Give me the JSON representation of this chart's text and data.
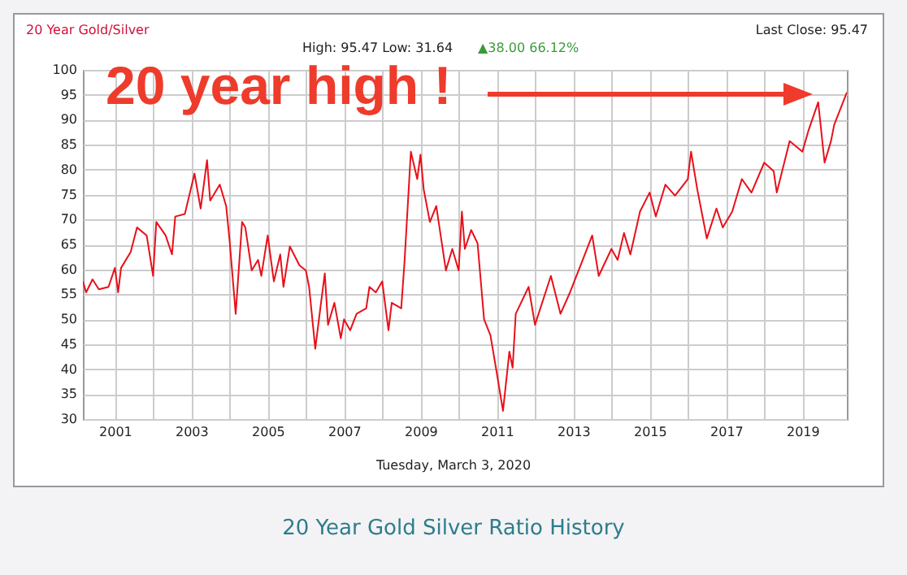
{
  "chart_data": {
    "type": "line",
    "title": "20 Year Gold/Silver",
    "subtitle": "High: 95.47 Low: 31.64",
    "xlabel": "Tuesday, March 3, 2020",
    "annotations": [
      "Last Close: 95.47",
      "▲38.00 66.12%",
      "20 year high !",
      "20 Year Gold Silver Ratio History"
    ],
    "x": [
      "2000-03",
      "2000-04",
      "2000-06",
      "2000-08",
      "2000-11",
      "2001-01",
      "2001-02",
      "2001-03",
      "2001-06",
      "2001-08",
      "2001-11",
      "2002-01",
      "2002-02",
      "2002-05",
      "2002-07",
      "2002-08",
      "2002-11",
      "2003-02",
      "2003-04",
      "2003-06",
      "2003-07",
      "2003-10",
      "2003-12",
      "2004-01",
      "2004-03",
      "2004-05",
      "2004-06",
      "2004-08",
      "2004-10",
      "2004-11",
      "2005-01",
      "2005-03",
      "2005-05",
      "2005-06",
      "2005-08",
      "2005-11",
      "2006-01",
      "2006-02",
      "2006-04",
      "2006-06",
      "2006-07",
      "2006-08",
      "2006-10",
      "2006-12",
      "2007-01",
      "2007-03",
      "2007-05",
      "2007-08",
      "2007-09",
      "2007-11",
      "2008-01",
      "2008-03",
      "2008-04",
      "2008-07",
      "2008-08",
      "2008-10",
      "2008-12",
      "2009-01",
      "2009-02",
      "2009-04",
      "2009-06",
      "2009-09",
      "2009-11",
      "2010-01",
      "2010-02",
      "2010-03",
      "2010-05",
      "2010-07",
      "2010-09",
      "2010-11",
      "2011-01",
      "2011-03",
      "2011-05",
      "2011-06",
      "2011-07",
      "2011-11",
      "2012-01",
      "2012-06",
      "2012-09",
      "2012-12",
      "2013-04",
      "2013-07",
      "2013-09",
      "2014-01",
      "2014-03",
      "2014-05",
      "2014-07",
      "2014-10",
      "2015-01",
      "2015-03",
      "2015-06",
      "2015-09",
      "2016-01",
      "2016-02",
      "2016-04",
      "2016-07",
      "2016-10",
      "2016-12",
      "2017-03",
      "2017-06",
      "2017-09",
      "2018-01",
      "2018-04",
      "2018-05",
      "2018-09",
      "2019-01",
      "2019-03",
      "2019-06",
      "2019-08",
      "2019-10",
      "2019-11",
      "2020-03"
    ],
    "series": [
      {
        "color": "#e8101a",
        "values": [
          57.6,
          55.4,
          58,
          56,
          56.5,
          60.3,
          55.4,
          60.3,
          63.5,
          68.4,
          66.8,
          58.7,
          69.5,
          66.8,
          63,
          70.6,
          71.1,
          79.2,
          72.2,
          81.9,
          73.8,
          77,
          72.7,
          66.2,
          51.1,
          69.5,
          68.4,
          59.8,
          61.9,
          58.7,
          66.8,
          57.6,
          63,
          56.5,
          64.6,
          60.8,
          59.8,
          56.5,
          44.1,
          54.3,
          59.2,
          48.9,
          53.3,
          46.2,
          50,
          47.8,
          51.1,
          52.2,
          56.5,
          55.4,
          57.6,
          47.8,
          53.3,
          52.2,
          61.4,
          83.6,
          78.1,
          83,
          76,
          69.5,
          72.7,
          59.8,
          64.1,
          59.8,
          71.6,
          64.1,
          67.9,
          65.2,
          50,
          46.8,
          39.2,
          31.64,
          43.5,
          40.3,
          51.1,
          56.5,
          48.9,
          58.7,
          51.1,
          55.4,
          61.9,
          66.8,
          58.7,
          64.1,
          61.9,
          67.3,
          63,
          71.6,
          75.4,
          70.6,
          77,
          74.8,
          78.1,
          83.6,
          76,
          66.2,
          72.2,
          68.4,
          71.6,
          78.1,
          75.4,
          81.4,
          79.7,
          75.4,
          85.7,
          83.6,
          87.9,
          93.5,
          81.4,
          85.7,
          89,
          95.47
        ]
      }
    ],
    "xlim": [
      "2000-03",
      "2020-03"
    ],
    "xticks": [
      "2001",
      {
        "value": "2002",
        "label": null
      },
      "2003",
      {
        "value": "2004",
        "label": null
      },
      "2005",
      {
        "value": "2006",
        "label": null
      },
      "2007",
      {
        "value": "2008",
        "label": null
      },
      "2009",
      {
        "value": "2010",
        "label": null
      },
      "2011",
      {
        "value": "2012",
        "label": null
      },
      "2013",
      {
        "value": "2014",
        "label": null
      },
      "2015",
      {
        "value": "2016",
        "label": null
      },
      "2017",
      {
        "value": "2018",
        "label": null
      },
      "2019"
    ],
    "ylim": [
      30,
      100
    ],
    "yticks": [
      30,
      35,
      40,
      45,
      50,
      55,
      60,
      65,
      70,
      75,
      80,
      85,
      90,
      95,
      100
    ],
    "grid": true
  }
}
